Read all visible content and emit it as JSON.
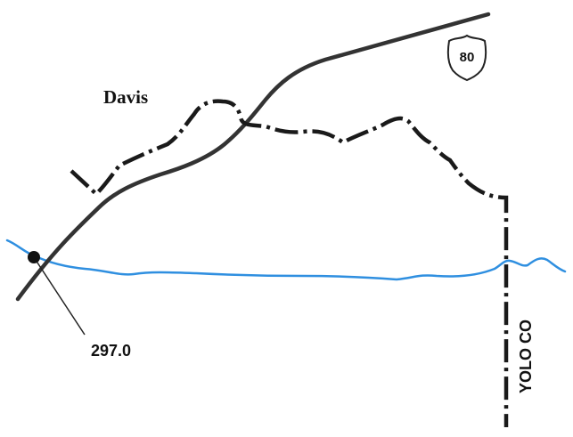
{
  "map": {
    "city_label": "Davis",
    "interstate_shield": "80",
    "milepost": "297.0",
    "county_label": "YOLO CO",
    "colors": {
      "highway": "#333333",
      "boundary": "#1a1a1a",
      "river": "#2f8fe0",
      "background": "#ffffff"
    },
    "icons": [
      "interstate-shield-icon",
      "milepost-marker-icon"
    ]
  }
}
